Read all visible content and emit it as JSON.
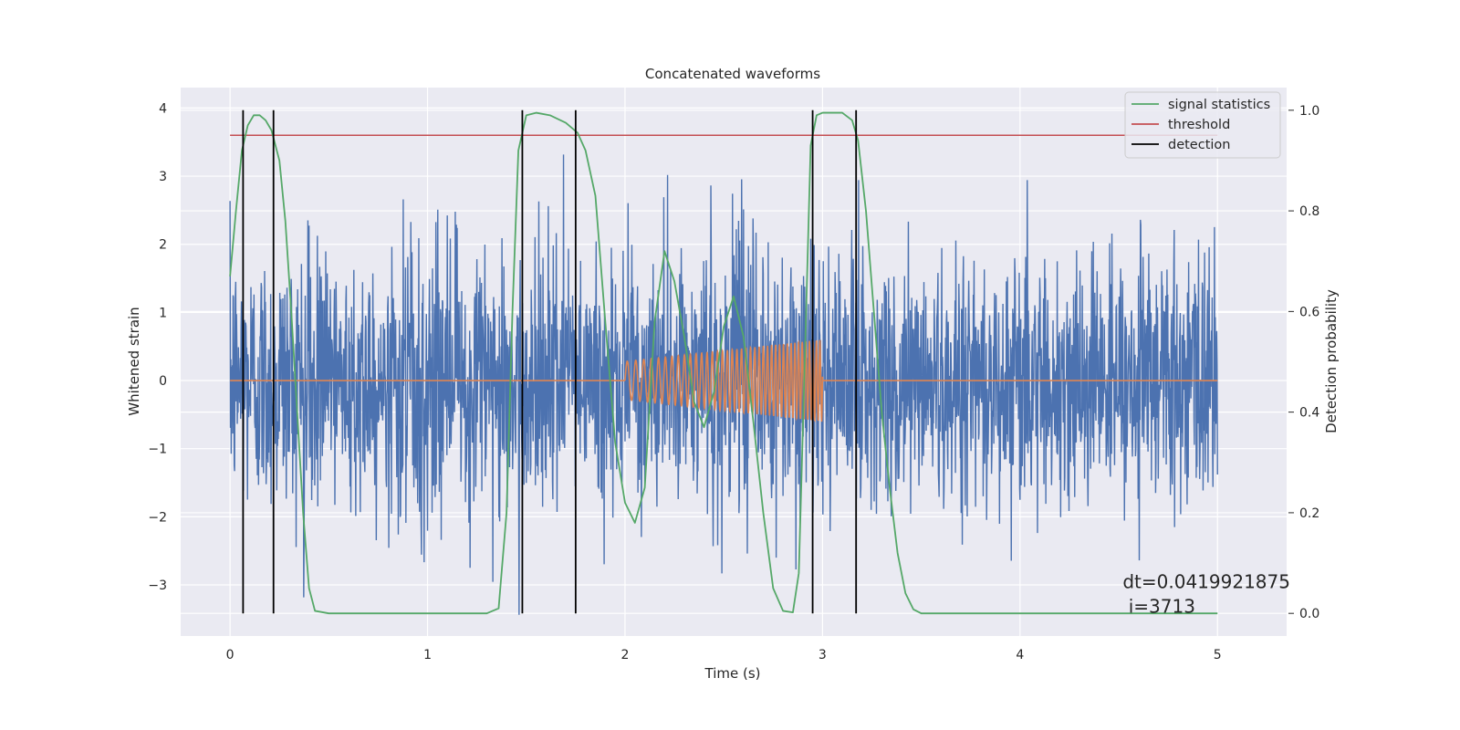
{
  "chart_data": {
    "type": "line",
    "title": "Concatenated waveforms",
    "xlabel": "Time (s)",
    "ylabel": "Whitened strain",
    "y2label": "Detection probability",
    "xlim": [
      -0.25,
      5.35
    ],
    "ylim": [
      -3.75,
      4.3
    ],
    "y2lim": [
      -0.045,
      1.045
    ],
    "xticks": [
      0,
      1,
      2,
      3,
      4,
      5
    ],
    "yticks": [
      -3,
      -2,
      -1,
      0,
      1,
      2,
      3,
      4
    ],
    "y2ticks": [
      0.0,
      0.2,
      0.4,
      0.6,
      0.8,
      1.0
    ],
    "x_tick_labels": [
      "0",
      "1",
      "2",
      "3",
      "4",
      "5"
    ],
    "y_tick_labels": [
      "−3",
      "−2",
      "−1",
      "0",
      "1",
      "2",
      "3",
      "4"
    ],
    "y2_tick_labels": [
      "0.0",
      "0.2",
      "0.4",
      "0.6",
      "0.8",
      "1.0"
    ],
    "grid": true,
    "legend_position": "top-right",
    "colors": {
      "noise": "#4c72b0",
      "waveform": "#dd8452",
      "signal_statistics": "#55a868",
      "threshold": "#c44e52",
      "detection": "#000000",
      "background": "#eaeaf2",
      "grid": "#ffffff"
    },
    "series": [
      {
        "key": "noise",
        "axis": "left",
        "x_range": [
          0,
          5
        ],
        "amplitude_envelope": [
          -3.45,
          3.95
        ]
      },
      {
        "key": "waveform",
        "axis": "left",
        "segments": [
          {
            "x": [
              0,
              2
            ],
            "y": 0
          },
          {
            "x": [
              2,
              3
            ],
            "amplitude": [
              0.28,
              0.6
            ],
            "frequency_hz": [
              22,
              58
            ]
          },
          {
            "x": [
              3,
              5
            ],
            "y": 0
          }
        ]
      },
      {
        "key": "signal_statistics",
        "axis": "right",
        "name": "signal statistics",
        "x": [
          0.0,
          0.03,
          0.06,
          0.09,
          0.12,
          0.15,
          0.18,
          0.21,
          0.25,
          0.28,
          0.31,
          0.34,
          0.37,
          0.4,
          0.43,
          0.5,
          1.0,
          1.3,
          1.36,
          1.4,
          1.43,
          1.46,
          1.5,
          1.55,
          1.62,
          1.7,
          1.76,
          1.8,
          1.85,
          1.9,
          1.95,
          2.0,
          2.05,
          2.1,
          2.15,
          2.2,
          2.25,
          2.3,
          2.35,
          2.4,
          2.45,
          2.5,
          2.55,
          2.6,
          2.65,
          2.7,
          2.75,
          2.8,
          2.85,
          2.88,
          2.91,
          2.94,
          2.97,
          3.0,
          3.05,
          3.1,
          3.15,
          3.18,
          3.22,
          3.26,
          3.3,
          3.34,
          3.38,
          3.42,
          3.46,
          3.5,
          4.0,
          4.5,
          5.0
        ],
        "y": [
          0.67,
          0.8,
          0.92,
          0.97,
          0.99,
          0.99,
          0.98,
          0.96,
          0.9,
          0.78,
          0.6,
          0.4,
          0.2,
          0.05,
          0.005,
          0.0,
          0.0,
          0.0,
          0.01,
          0.2,
          0.6,
          0.92,
          0.99,
          0.995,
          0.99,
          0.975,
          0.955,
          0.92,
          0.83,
          0.58,
          0.34,
          0.22,
          0.18,
          0.25,
          0.58,
          0.72,
          0.66,
          0.55,
          0.42,
          0.37,
          0.44,
          0.57,
          0.63,
          0.55,
          0.38,
          0.2,
          0.05,
          0.005,
          0.002,
          0.08,
          0.5,
          0.93,
          0.99,
          0.995,
          0.995,
          0.995,
          0.98,
          0.94,
          0.8,
          0.6,
          0.4,
          0.25,
          0.12,
          0.04,
          0.008,
          0.0,
          0.0,
          0.0,
          0.0
        ]
      },
      {
        "key": "threshold",
        "axis": "left",
        "name": "threshold",
        "x": [
          0,
          5
        ],
        "y": 3.6
      },
      {
        "key": "detection",
        "axis": "right",
        "name": "detection",
        "x": [
          0.066,
          0.22,
          1.48,
          1.75,
          2.95,
          3.17
        ],
        "y_range": [
          0,
          1.0
        ]
      }
    ],
    "legend": [
      {
        "key": "signal_statistics",
        "label": "signal statistics"
      },
      {
        "key": "threshold",
        "label": "threshold"
      },
      {
        "key": "detection",
        "label": "detection"
      }
    ],
    "annotation": {
      "line1": "dt=0.0419921875",
      "line2": " i=3713",
      "x": 4.52,
      "y": -2.95
    }
  }
}
